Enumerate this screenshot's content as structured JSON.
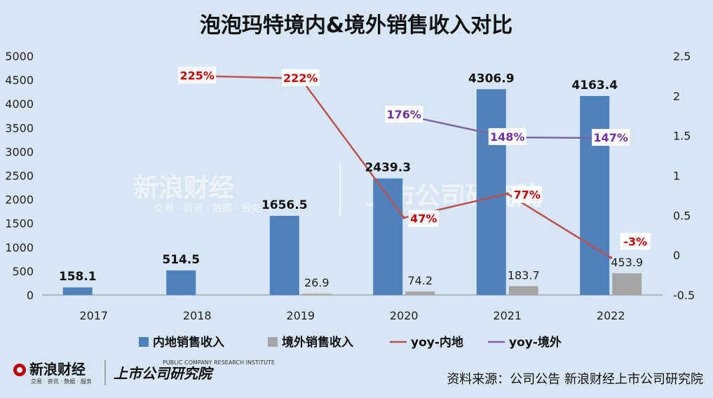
{
  "chart_data": {
    "type": "bar",
    "title": "泡泡玛特境内&境外销售收入对比",
    "categories": [
      "2017",
      "2018",
      "2019",
      "2020",
      "2021",
      "2022"
    ],
    "y_left": {
      "ticks": [
        "5000",
        "4500",
        "4000",
        "3500",
        "3000",
        "2500",
        "2000",
        "1500",
        "1000",
        "500",
        "0"
      ],
      "ylim": [
        0,
        5000
      ]
    },
    "y_right": {
      "ticks": [
        "2.5",
        "2",
        "1.5",
        "1",
        "0.5",
        "0",
        "-0.5"
      ],
      "ylim": [
        -0.5,
        2.5
      ]
    },
    "series": [
      {
        "name": "内地销售收入",
        "kind": "bar",
        "axis": "left",
        "color": "#4f81bd",
        "values": [
          158.1,
          514.5,
          1656.5,
          2439.3,
          4306.9,
          4163.4
        ],
        "labels": [
          "158.1",
          "514.5",
          "1656.5",
          "2439.3",
          "4306.9",
          "4163.4"
        ]
      },
      {
        "name": "境外销售收入",
        "kind": "bar",
        "axis": "left",
        "color": "#a5a5a5",
        "values": [
          null,
          null,
          26.9,
          74.2,
          183.7,
          453.9
        ],
        "labels": [
          "",
          "",
          "26.9",
          "74.2",
          "183.7",
          "453.9"
        ]
      },
      {
        "name": "yoy-内地",
        "kind": "line",
        "axis": "right",
        "color": "#c0504d",
        "values": [
          null,
          2.25,
          2.22,
          0.47,
          0.77,
          -0.03
        ],
        "labels": [
          "",
          "225%",
          "222%",
          "47%",
          "77%",
          "-3%"
        ]
      },
      {
        "name": "yoy-境外",
        "kind": "line",
        "axis": "right",
        "color": "#8064a2",
        "values": [
          null,
          null,
          null,
          1.76,
          1.48,
          1.47
        ],
        "labels": [
          "",
          "",
          "",
          "176%",
          "148%",
          "147%"
        ]
      }
    ],
    "legend_position": "bottom",
    "grid": false
  },
  "footer": {
    "source": "资料来源：公司公告 新浪财经上市公司研究院",
    "logo_sina": "新浪财经",
    "logo_sina_sub": "交易 · 资讯 · 数据 · 服务",
    "logo_institute": "上市公司研究院",
    "logo_institute_sub": "PUBLIC COMPANY RESEARCH INSTITUTE"
  },
  "watermark": {
    "sina": "新浪财经",
    "sina_sub": "交易 · 资讯 · 数据 · 服务",
    "institute": "上市公司研究院"
  }
}
